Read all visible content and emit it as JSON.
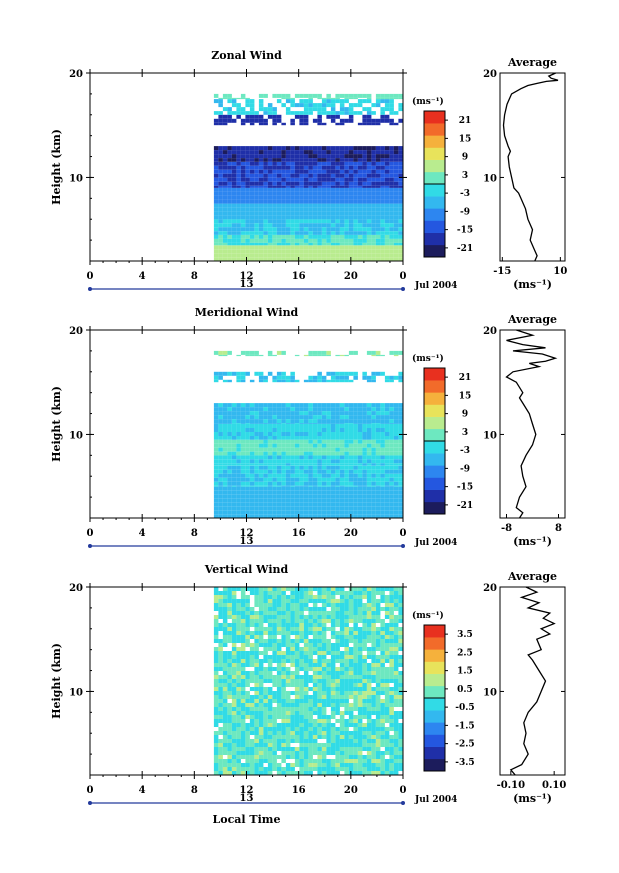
{
  "chart_data": [
    {
      "type": "heatmap",
      "title": "Zonal Wind",
      "ylabel": "Height (km)",
      "y_ticks": [
        "20",
        "10"
      ],
      "ylim": [
        2,
        20
      ],
      "x_ticks": [
        "0",
        "4",
        "8",
        "12",
        "16",
        "20",
        "0"
      ],
      "xlim": [
        0,
        24
      ],
      "date_mark": "13",
      "date_label": "Jul 2004",
      "colorbar": {
        "unit": "(ms⁻¹)",
        "labels": [
          "21",
          "15",
          "9",
          "3",
          "-3",
          "-9",
          "-15",
          "-21"
        ],
        "range": [
          -24,
          24
        ]
      },
      "data_start_hour": 9.5,
      "field_bands": [
        {
          "y": [
            2.0,
            3.5
          ],
          "value": 6
        },
        {
          "y": [
            3.5,
            4.5
          ],
          "value": 0
        },
        {
          "y": [
            4.5,
            6.0
          ],
          "value": -4
        },
        {
          "y": [
            6.0,
            7.5
          ],
          "value": -6
        },
        {
          "y": [
            7.5,
            9.0
          ],
          "value": -10
        },
        {
          "y": [
            9.0,
            11.5
          ],
          "value": -16
        },
        {
          "y": [
            11.5,
            13.0
          ],
          "value": -19
        },
        {
          "y": [
            15.0,
            16.0
          ],
          "value": -18
        },
        {
          "y": [
            16.0,
            17.5
          ],
          "value": -3
        },
        {
          "y": [
            17.5,
            18.0
          ],
          "value": 2
        }
      ],
      "profile": {
        "title": "Average",
        "xlabel": "(ms⁻¹)",
        "x_ticks": [
          "-15",
          "10"
        ],
        "xlim": [
          -16,
          12
        ],
        "y_ticks": [
          "20",
          "10"
        ],
        "ylim": [
          2,
          20
        ],
        "points": [
          [
            -1,
            2.0
          ],
          [
            0,
            2.5
          ],
          [
            -1,
            3.0
          ],
          [
            -3,
            4.0
          ],
          [
            -2,
            5.0
          ],
          [
            -4,
            6.0
          ],
          [
            -5,
            7.0
          ],
          [
            -7,
            8.0
          ],
          [
            -8,
            8.5
          ],
          [
            -10,
            9.0
          ],
          [
            -11,
            10.0
          ],
          [
            -12,
            11.0
          ],
          [
            -12.5,
            12.0
          ],
          [
            -11.5,
            12.5
          ],
          [
            -12.5,
            13.0
          ],
          [
            -14,
            14.0
          ],
          [
            -14.5,
            15.0
          ],
          [
            -14,
            16.0
          ],
          [
            -13,
            17.0
          ],
          [
            -11,
            18.0
          ],
          [
            -7,
            18.5
          ],
          [
            -4,
            18.8
          ],
          [
            0,
            19.0
          ],
          [
            4,
            19.2
          ],
          [
            9,
            19.3
          ],
          [
            6,
            19.5
          ],
          [
            5,
            19.7
          ],
          [
            8,
            20.0
          ]
        ]
      }
    },
    {
      "type": "heatmap",
      "title": "Meridional Wind",
      "ylabel": "Height (km)",
      "y_ticks": [
        "20",
        "10"
      ],
      "ylim": [
        2,
        20
      ],
      "x_ticks": [
        "0",
        "4",
        "8",
        "12",
        "16",
        "20",
        "0"
      ],
      "xlim": [
        0,
        24
      ],
      "date_mark": "13",
      "date_label": "Jul 2004",
      "colorbar": {
        "unit": "(ms⁻¹)",
        "labels": [
          "21",
          "15",
          "9",
          "3",
          "-3",
          "-9",
          "-15",
          "-21"
        ],
        "range": [
          -24,
          24
        ]
      },
      "data_start_hour": 9.5,
      "field_bands": [
        {
          "y": [
            2.0,
            5.0
          ],
          "value": -6
        },
        {
          "y": [
            5.0,
            7.0
          ],
          "value": -4
        },
        {
          "y": [
            7.0,
            8.0
          ],
          "value": -3
        },
        {
          "y": [
            8.0,
            9.5
          ],
          "value": 1
        },
        {
          "y": [
            9.5,
            11.0
          ],
          "value": -3
        },
        {
          "y": [
            11.0,
            13.0
          ],
          "value": -5
        },
        {
          "y": [
            15.0,
            16.0
          ],
          "value": -4
        },
        {
          "y": [
            17.5,
            18.0
          ],
          "value": 3
        }
      ],
      "profile": {
        "title": "Average",
        "xlabel": "(ms⁻¹)",
        "x_ticks": [
          "-8",
          "8"
        ],
        "xlim": [
          -10,
          10
        ],
        "y_ticks": [
          "20",
          "10"
        ],
        "ylim": [
          2,
          20
        ],
        "points": [
          [
            -4,
            2.0
          ],
          [
            -3,
            2.5
          ],
          [
            -5,
            3.0
          ],
          [
            -4,
            4.0
          ],
          [
            -2,
            5.0
          ],
          [
            -3,
            6.0
          ],
          [
            -3.5,
            7.0
          ],
          [
            -2,
            8.0
          ],
          [
            0,
            9.0
          ],
          [
            1,
            10.0
          ],
          [
            0,
            11.0
          ],
          [
            -1,
            12.0
          ],
          [
            -3,
            13.0
          ],
          [
            -4,
            13.5
          ],
          [
            -3,
            14.0
          ],
          [
            -5,
            15.0
          ],
          [
            -8,
            15.5
          ],
          [
            -6,
            16.0
          ],
          [
            2,
            16.5
          ],
          [
            -1,
            16.8
          ],
          [
            4,
            17.0
          ],
          [
            7,
            17.3
          ],
          [
            3,
            17.7
          ],
          [
            -6,
            18.0
          ],
          [
            4,
            18.3
          ],
          [
            -3,
            18.6
          ],
          [
            -8,
            19.0
          ],
          [
            0,
            19.5
          ],
          [
            -5,
            20.0
          ]
        ]
      }
    },
    {
      "type": "heatmap",
      "title": "Vertical Wind",
      "ylabel": "Height (km)",
      "xlabel": "Local Time",
      "y_ticks": [
        "20",
        "10"
      ],
      "ylim": [
        2,
        20
      ],
      "x_ticks": [
        "0",
        "4",
        "8",
        "12",
        "16",
        "20",
        "0"
      ],
      "xlim": [
        0,
        24
      ],
      "date_mark": "13",
      "date_label": "Jul 2004",
      "colorbar": {
        "unit": "(ms⁻¹)",
        "labels": [
          "3.5",
          "2.5",
          "1.5",
          "0.5",
          "-0.5",
          "-1.5",
          "-2.5",
          "-3.5"
        ],
        "range": [
          -4,
          4
        ]
      },
      "data_start_hour": 9.5,
      "field_bands": [
        {
          "y": [
            2.0,
            20.0
          ],
          "value": 0.1
        }
      ],
      "profile": {
        "title": "Average",
        "xlabel": "(ms⁻¹)",
        "x_ticks": [
          "-0.10",
          "0.10"
        ],
        "xlim": [
          -0.15,
          0.15
        ],
        "y_ticks": [
          "20",
          "10"
        ],
        "ylim": [
          2,
          20
        ],
        "points": [
          [
            -0.08,
            2.0
          ],
          [
            -0.1,
            2.5
          ],
          [
            -0.05,
            3.0
          ],
          [
            -0.02,
            4.0
          ],
          [
            -0.04,
            5.0
          ],
          [
            -0.03,
            6.0
          ],
          [
            -0.04,
            7.0
          ],
          [
            -0.02,
            8.0
          ],
          [
            0.02,
            9.0
          ],
          [
            0.04,
            10.0
          ],
          [
            0.06,
            11.0
          ],
          [
            0.03,
            12.0
          ],
          [
            0.0,
            13.0
          ],
          [
            -0.02,
            13.5
          ],
          [
            0.04,
            14.0
          ],
          [
            0.02,
            15.0
          ],
          [
            0.08,
            15.5
          ],
          [
            0.04,
            16.0
          ],
          [
            0.1,
            16.5
          ],
          [
            0.05,
            17.0
          ],
          [
            0.08,
            17.5
          ],
          [
            -0.02,
            18.0
          ],
          [
            0.03,
            18.5
          ],
          [
            -0.05,
            19.0
          ],
          [
            0.02,
            19.5
          ],
          [
            -0.03,
            20.0
          ]
        ]
      }
    }
  ]
}
